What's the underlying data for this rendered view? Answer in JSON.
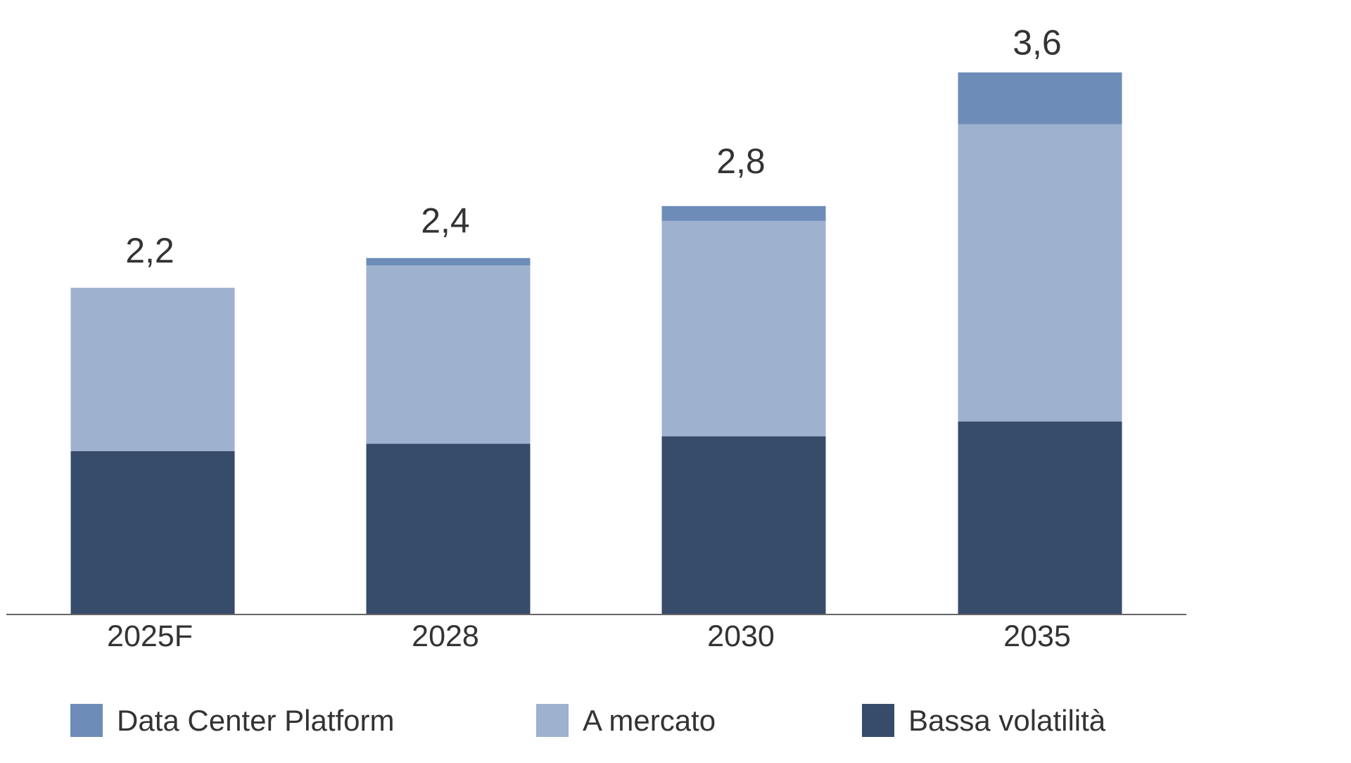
{
  "chart_data": {
    "type": "stacked-bar",
    "categories": [
      "2025F",
      "2028",
      "2030",
      "2035"
    ],
    "series": [
      {
        "name": "Bassa volatilità",
        "color": "#374c6b",
        "values": [
          1.1,
          1.15,
          1.2,
          1.3
        ]
      },
      {
        "name": "A mercato",
        "color": "#9eb1cf",
        "values": [
          1.1,
          1.2,
          1.45,
          2.0
        ]
      },
      {
        "name": "Data Center Platform",
        "color": "#6e8cb8",
        "values": [
          0,
          0.05,
          0.1,
          0.35
        ]
      }
    ],
    "totals": [
      2.2,
      2.4,
      2.8,
      3.6
    ],
    "total_labels": [
      "2,2",
      "2,4",
      "2,8",
      "3,6"
    ],
    "legend_order": [
      2,
      1,
      0
    ]
  }
}
